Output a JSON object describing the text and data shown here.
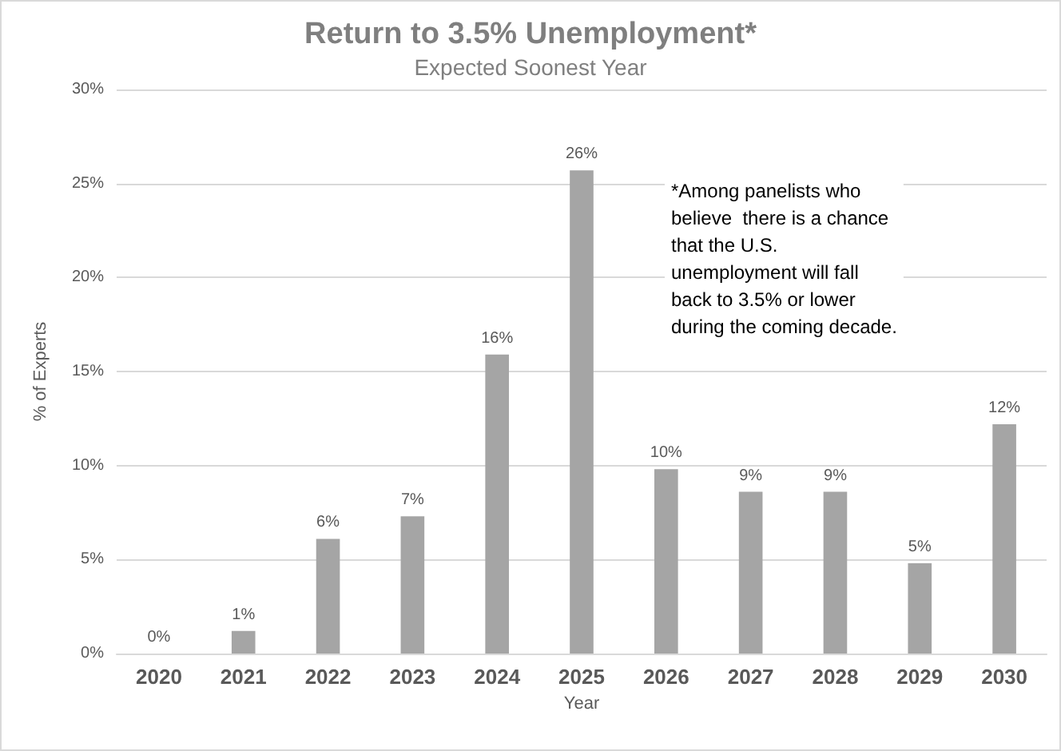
{
  "chart_data": {
    "type": "bar",
    "title": "Return to 3.5% Unemployment*",
    "subtitle": "Expected Soonest Year",
    "xlabel": "Year",
    "ylabel": "% of Experts",
    "categories": [
      "2020",
      "2021",
      "2022",
      "2023",
      "2024",
      "2025",
      "2026",
      "2027",
      "2028",
      "2029",
      "2030"
    ],
    "values": [
      0,
      1.2,
      6.1,
      7.3,
      15.9,
      25.7,
      9.8,
      8.6,
      8.6,
      4.8,
      12.2
    ],
    "value_labels": [
      "0%",
      "1%",
      "6%",
      "7%",
      "16%",
      "26%",
      "10%",
      "9%",
      "9%",
      "5%",
      "12%"
    ],
    "color": "#a5a5a5",
    "grid": "y",
    "ylim": [
      0,
      30
    ],
    "yticks": [
      {
        "value": 0,
        "label": "0%"
      },
      {
        "value": 5,
        "label": "5%"
      },
      {
        "value": 10,
        "label": "10%"
      },
      {
        "value": 15,
        "label": "15%"
      },
      {
        "value": 20,
        "label": "20%"
      },
      {
        "value": 25,
        "label": "25%"
      },
      {
        "value": 30,
        "label": "30%"
      }
    ],
    "annotations": [
      "*Among panelists who\nbelieve  there is a chance\nthat the U.S.\nunemployment will fall\nback to 3.5% or lower\nduring the coming decade."
    ]
  }
}
